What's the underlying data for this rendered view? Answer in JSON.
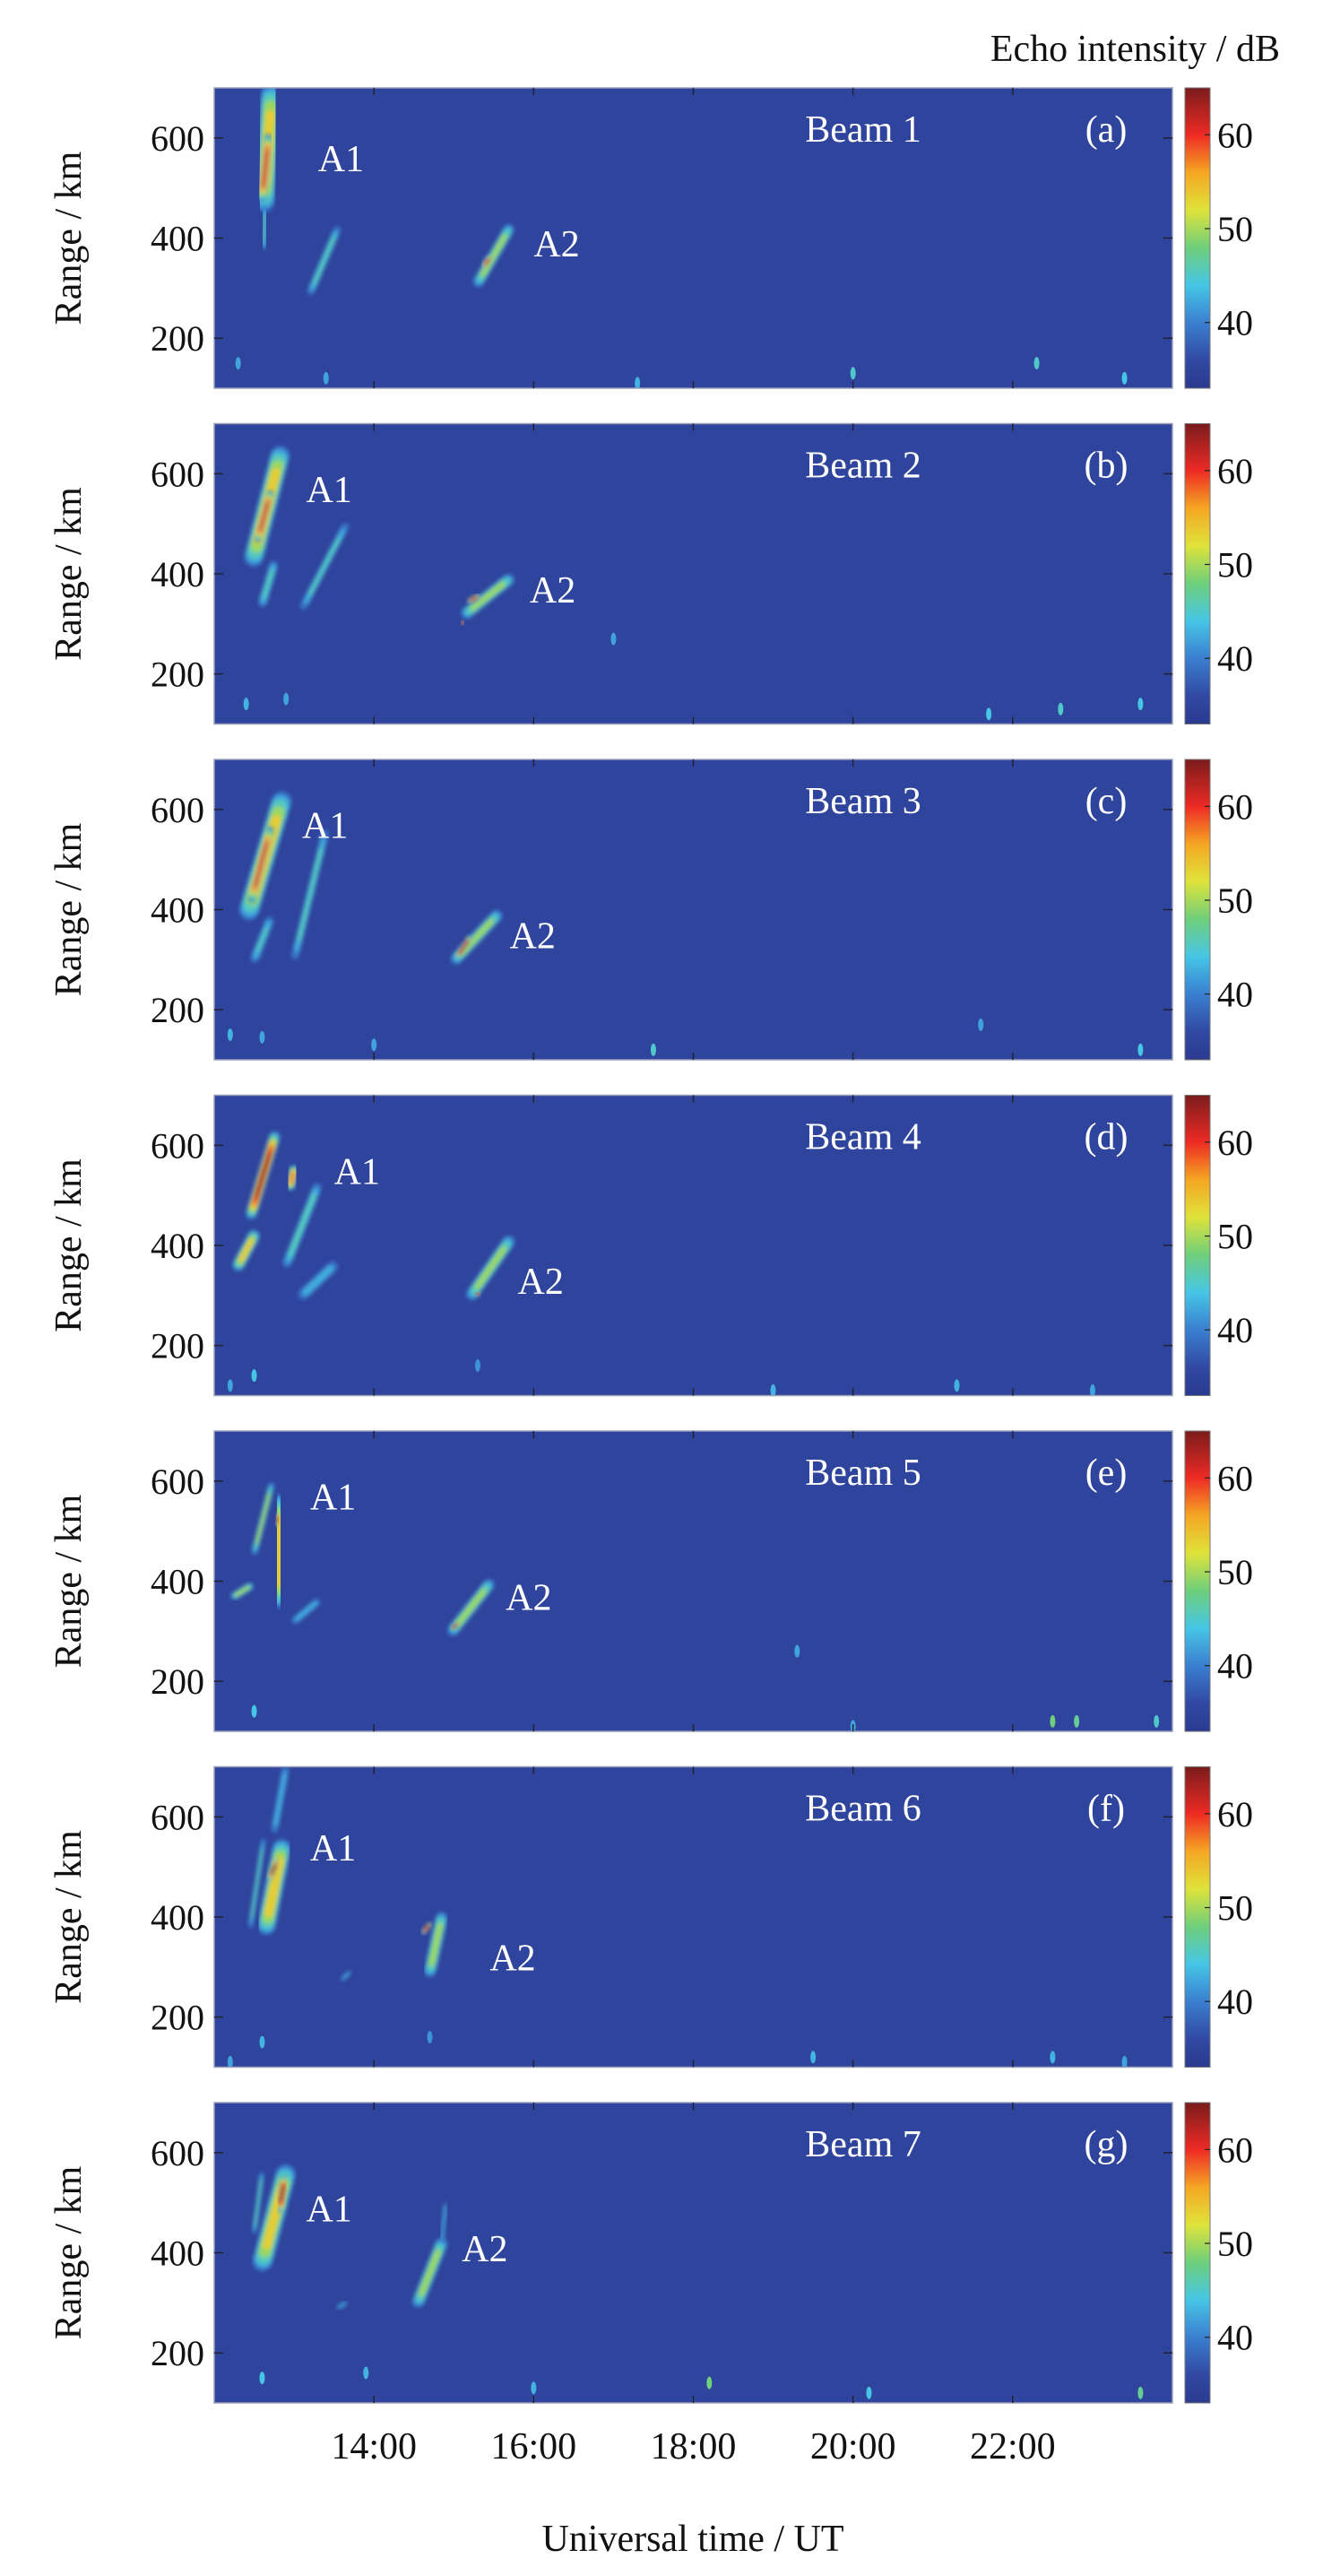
{
  "chart_data": {
    "type": "heatmap",
    "xlabel": "Universal time / UT",
    "ylabel": "Range / km",
    "colorbar_label": "Echo intensity / dB",
    "xlim": [
      12,
      24
    ],
    "xticks": [
      14,
      16,
      18,
      20,
      22
    ],
    "xtick_labels": [
      "14:00",
      "16:00",
      "18:00",
      "20:00",
      "22:00"
    ],
    "ylim": [
      100,
      700
    ],
    "yticks": [
      200,
      400,
      600
    ],
    "ytick_labels": [
      "200",
      "400",
      "600"
    ],
    "clim": [
      33,
      65
    ],
    "cticks": [
      40,
      50,
      60
    ],
    "ctick_labels": [
      "40",
      "50",
      "60"
    ],
    "colormap": [
      [
        33,
        "#2a3a8f"
      ],
      [
        36,
        "#3149a3"
      ],
      [
        40,
        "#3a7fd0"
      ],
      [
        44,
        "#46c6e6"
      ],
      [
        48,
        "#6fcf7a"
      ],
      [
        52,
        "#dfe33a"
      ],
      [
        56,
        "#f5a623"
      ],
      [
        60,
        "#ee2a24"
      ],
      [
        65,
        "#7a1c1c"
      ]
    ],
    "background_db": 35,
    "panels": [
      {
        "title": "Beam 1",
        "tag": "(a)",
        "labels": [
          {
            "text": "A1",
            "t": 13.3,
            "r": 560
          },
          {
            "text": "A2",
            "t": 16.0,
            "r": 390
          }
        ],
        "echoes": [
          {
            "from": [
              12.62,
              470
            ],
            "to": [
              12.72,
              690
            ],
            "w": 0.28,
            "peak": 55
          },
          {
            "from": [
              12.6,
              480
            ],
            "to": [
              12.68,
              600
            ],
            "w": 0.12,
            "peak": 62
          },
          {
            "from": [
              12.62,
              380
            ],
            "to": [
              12.64,
              460
            ],
            "w": 0.08,
            "peak": 46
          },
          {
            "from": [
              13.2,
              290
            ],
            "to": [
              13.55,
              420
            ],
            "w": 0.1,
            "peak": 47
          },
          {
            "from": [
              15.3,
              310
            ],
            "to": [
              15.7,
              420
            ],
            "w": 0.14,
            "peak": 52
          },
          {
            "from": [
              15.38,
              345
            ],
            "to": [
              15.45,
              360
            ],
            "w": 0.07,
            "peak": 63
          }
        ],
        "speckles": [
          [
            12.3,
            150,
            42
          ],
          [
            13.4,
            120,
            42
          ],
          [
            17.3,
            110,
            43
          ],
          [
            20.0,
            130,
            45
          ],
          [
            22.3,
            150,
            45
          ],
          [
            23.4,
            120,
            44
          ]
        ]
      },
      {
        "title": "Beam 2",
        "tag": "(b)",
        "labels": [
          {
            "text": "A1",
            "t": 13.15,
            "r": 570
          },
          {
            "text": "A2",
            "t": 15.95,
            "r": 370
          }
        ],
        "echoes": [
          {
            "from": [
              12.49,
              430
            ],
            "to": [
              12.83,
              640
            ],
            "w": 0.25,
            "peak": 56
          },
          {
            "from": [
              12.55,
              470
            ],
            "to": [
              12.7,
              560
            ],
            "w": 0.1,
            "peak": 63
          },
          {
            "from": [
              12.6,
              340
            ],
            "to": [
              12.75,
              420
            ],
            "w": 0.12,
            "peak": 46
          },
          {
            "from": [
              13.1,
              330
            ],
            "to": [
              13.66,
              500
            ],
            "w": 0.1,
            "peak": 46
          },
          {
            "from": [
              15.15,
              320
            ],
            "to": [
              15.7,
              390
            ],
            "w": 0.15,
            "peak": 52
          },
          {
            "from": [
              15.2,
              345
            ],
            "to": [
              15.3,
              355
            ],
            "w": 0.07,
            "peak": 62
          },
          {
            "from": [
              15.1,
              300
            ],
            "to": [
              15.12,
              305
            ],
            "w": 0.04,
            "peak": 60
          }
        ],
        "speckles": [
          [
            12.4,
            140,
            43
          ],
          [
            12.9,
            150,
            42
          ],
          [
            17.0,
            270,
            42
          ],
          [
            21.7,
            120,
            44
          ],
          [
            22.6,
            130,
            45
          ],
          [
            23.6,
            140,
            44
          ]
        ]
      },
      {
        "title": "Beam 3",
        "tag": "(c)",
        "labels": [
          {
            "text": "A1",
            "t": 13.1,
            "r": 570
          },
          {
            "text": "A2",
            "t": 15.7,
            "r": 350
          }
        ],
        "echoes": [
          {
            "from": [
              12.43,
              395
            ],
            "to": [
              12.85,
              620
            ],
            "w": 0.26,
            "peak": 56
          },
          {
            "from": [
              12.47,
              420
            ],
            "to": [
              12.7,
              560
            ],
            "w": 0.1,
            "peak": 63
          },
          {
            "from": [
              12.5,
              300
            ],
            "to": [
              12.7,
              380
            ],
            "w": 0.12,
            "peak": 45
          },
          {
            "from": [
              13.0,
              300
            ],
            "to": [
              13.4,
              560
            ],
            "w": 0.1,
            "peak": 47
          },
          {
            "from": [
              15.02,
              300
            ],
            "to": [
              15.55,
              390
            ],
            "w": 0.15,
            "peak": 52
          },
          {
            "from": [
              15.04,
              305
            ],
            "to": [
              15.2,
              345
            ],
            "w": 0.05,
            "peak": 63
          },
          {
            "from": [
              17.6,
              275
            ],
            "to": [
              18.2,
              275
            ],
            "w": 0.03,
            "peak": 43
          }
        ],
        "speckles": [
          [
            12.2,
            150,
            43
          ],
          [
            12.6,
            145,
            42
          ],
          [
            14.0,
            130,
            42
          ],
          [
            17.5,
            120,
            45
          ],
          [
            21.6,
            170,
            42
          ],
          [
            23.6,
            120,
            44
          ]
        ]
      },
      {
        "title": "Beam 4",
        "tag": "(d)",
        "labels": [
          {
            "text": "A1",
            "t": 13.5,
            "r": 550
          },
          {
            "text": "A2",
            "t": 15.8,
            "r": 330
          }
        ],
        "echoes": [
          {
            "from": [
              12.46,
              461
            ],
            "to": [
              12.76,
              619
            ],
            "w": 0.14,
            "peak": 64
          },
          {
            "from": [
              12.95,
              520
            ],
            "to": [
              13.0,
              550
            ],
            "w": 0.14,
            "peak": 58
          },
          {
            "from": [
              12.3,
              360
            ],
            "to": [
              12.5,
              420
            ],
            "w": 0.16,
            "peak": 55
          },
          {
            "from": [
              12.9,
              360
            ],
            "to": [
              13.3,
              520
            ],
            "w": 0.12,
            "peak": 48
          },
          {
            "from": [
              13.1,
              300
            ],
            "to": [
              13.5,
              360
            ],
            "w": 0.15,
            "peak": 44
          },
          {
            "from": [
              15.22,
              300
            ],
            "to": [
              15.7,
              410
            ],
            "w": 0.16,
            "peak": 52
          },
          {
            "from": [
              15.28,
              300
            ],
            "to": [
              15.32,
              305
            ],
            "w": 0.05,
            "peak": 63
          }
        ],
        "speckles": [
          [
            12.5,
            140,
            44
          ],
          [
            12.2,
            120,
            42
          ],
          [
            15.3,
            160,
            41
          ],
          [
            19.0,
            110,
            43
          ],
          [
            21.3,
            120,
            43
          ],
          [
            23.0,
            110,
            42
          ]
        ]
      },
      {
        "title": "Beam 5",
        "tag": "(e)",
        "labels": [
          {
            "text": "A1",
            "t": 13.2,
            "r": 570
          },
          {
            "text": "A2",
            "t": 15.65,
            "r": 370
          }
        ],
        "echoes": [
          {
            "from": [
              12.5,
              456
            ],
            "to": [
              12.72,
              594
            ],
            "w": 0.08,
            "peak": 52
          },
          {
            "from": [
              12.8,
              360
            ],
            "to": [
              12.82,
              560
            ],
            "w": 0.22,
            "peak": 56
          },
          {
            "from": [
              12.78,
              515
            ],
            "to": [
              12.8,
              530
            ],
            "w": 0.08,
            "peak": 64
          },
          {
            "from": [
              12.25,
              370
            ],
            "to": [
              12.45,
              390
            ],
            "w": 0.1,
            "peak": 52
          },
          {
            "from": [
              13.0,
              320
            ],
            "to": [
              13.3,
              360
            ],
            "w": 0.1,
            "peak": 44
          },
          {
            "from": [
              14.98,
              300
            ],
            "to": [
              15.45,
              395
            ],
            "w": 0.15,
            "peak": 52
          },
          {
            "from": [
              14.98,
              305
            ],
            "to": [
              15.05,
              315
            ],
            "w": 0.05,
            "peak": 63
          }
        ],
        "speckles": [
          [
            12.5,
            140,
            44
          ],
          [
            19.3,
            260,
            42
          ],
          [
            20.0,
            110,
            42
          ],
          [
            22.5,
            120,
            48
          ],
          [
            22.8,
            120,
            47
          ],
          [
            23.8,
            120,
            45
          ]
        ]
      },
      {
        "title": "Beam 6",
        "tag": "(f)",
        "labels": [
          {
            "text": "A1",
            "t": 13.2,
            "r": 540
          },
          {
            "text": "A2",
            "t": 15.45,
            "r": 320
          }
        ],
        "echoes": [
          {
            "from": [
              12.75,
              570
            ],
            "to": [
              12.9,
              700
            ],
            "w": 0.1,
            "peak": 44
          },
          {
            "from": [
              12.65,
              380
            ],
            "to": [
              12.85,
              540
            ],
            "w": 0.24,
            "peak": 56
          },
          {
            "from": [
              12.7,
              480
            ],
            "to": [
              12.78,
              510
            ],
            "w": 0.08,
            "peak": 64
          },
          {
            "from": [
              12.45,
              377
            ],
            "to": [
              12.62,
              557
            ],
            "w": 0.06,
            "peak": 48
          },
          {
            "from": [
              14.7,
              290
            ],
            "to": [
              14.85,
              400
            ],
            "w": 0.16,
            "peak": 52
          },
          {
            "from": [
              14.62,
              370
            ],
            "to": [
              14.7,
              385
            ],
            "w": 0.06,
            "peak": 63
          },
          {
            "from": [
              13.6,
              275
            ],
            "to": [
              13.7,
              290
            ],
            "w": 0.06,
            "peak": 42
          }
        ],
        "speckles": [
          [
            12.6,
            150,
            43
          ],
          [
            12.2,
            110,
            42
          ],
          [
            14.7,
            160,
            41
          ],
          [
            19.5,
            120,
            43
          ],
          [
            22.5,
            120,
            43
          ],
          [
            23.4,
            110,
            42
          ]
        ]
      },
      {
        "title": "Beam 7",
        "tag": "(g)",
        "labels": [
          {
            "text": "A1",
            "t": 13.15,
            "r": 490
          },
          {
            "text": "A2",
            "t": 15.1,
            "r": 410
          }
        ],
        "echoes": [
          {
            "from": [
              12.8,
              600
            ],
            "to": [
              12.8,
              700
            ],
            "w": 0.12,
            "peak": 45
          },
          {
            "from": [
              12.6,
              380
            ],
            "to": [
              12.9,
              560
            ],
            "w": 0.26,
            "peak": 55
          },
          {
            "from": [
              12.82,
              490
            ],
            "to": [
              12.88,
              545
            ],
            "w": 0.12,
            "peak": 64
          },
          {
            "from": [
              12.5,
              440
            ],
            "to": [
              12.6,
              560
            ],
            "w": 0.06,
            "peak": 48
          },
          {
            "from": [
              14.55,
              300
            ],
            "to": [
              14.85,
              420
            ],
            "w": 0.16,
            "peak": 52
          },
          {
            "from": [
              14.85,
              420
            ],
            "to": [
              14.9,
              500
            ],
            "w": 0.05,
            "peak": 44
          },
          {
            "from": [
              13.55,
              290
            ],
            "to": [
              13.65,
              300
            ],
            "w": 0.06,
            "peak": 42
          }
        ],
        "speckles": [
          [
            12.6,
            150,
            44
          ],
          [
            13.9,
            160,
            43
          ],
          [
            16.0,
            130,
            43
          ],
          [
            18.2,
            140,
            48
          ],
          [
            20.2,
            120,
            44
          ],
          [
            23.6,
            120,
            47
          ]
        ]
      }
    ]
  }
}
